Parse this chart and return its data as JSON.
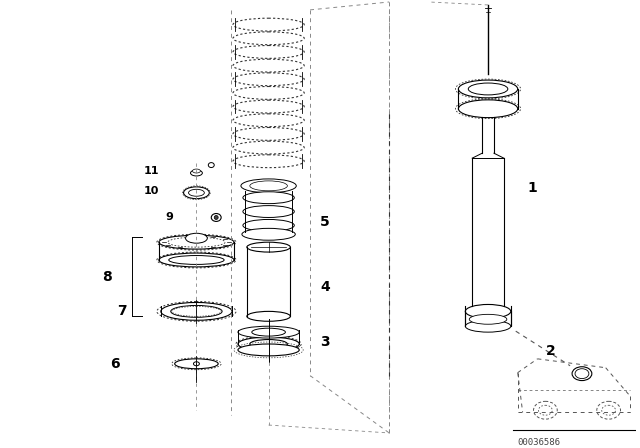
{
  "background_color": "#ffffff",
  "fig_width": 6.4,
  "fig_height": 4.48,
  "dpi": 100,
  "watermark": "00036586",
  "line_color": "#000000",
  "text_color": "#000000",
  "font_size": 8,
  "label_font_size": 10
}
